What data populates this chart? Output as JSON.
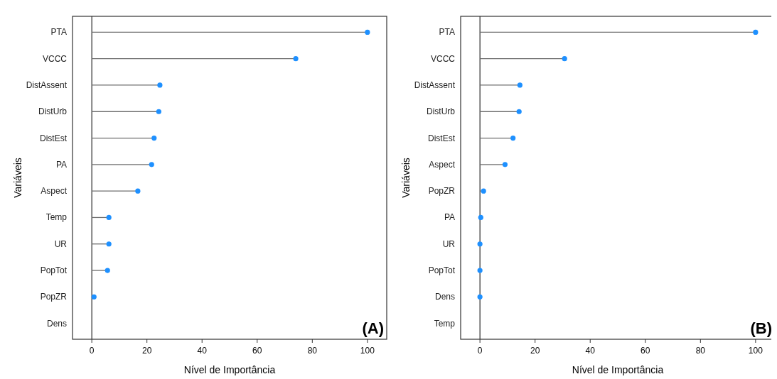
{
  "chart_data": [
    {
      "type": "lollipop",
      "orientation": "horizontal",
      "categories": [
        "PTA",
        "VCCC",
        "DistAssent",
        "DistUrb",
        "DistEst",
        "PA",
        "Aspect",
        "Temp",
        "UR",
        "PopTot",
        "PopZR",
        "Dens"
      ],
      "values": [
        100,
        74,
        24.7,
        24.3,
        22.6,
        21.7,
        16.7,
        6.2,
        6.2,
        5.7,
        0.8,
        null
      ],
      "color": "#1e90ff",
      "marker": "circle",
      "xlim": [
        -7,
        107
      ],
      "xticks": [
        0,
        20,
        40,
        60,
        80,
        100
      ],
      "xlabel": "Nível de Importância",
      "ylabel": "Variáveis",
      "ref_lines": [
        {
          "axis": "x",
          "value": 0,
          "color": "#000000"
        }
      ],
      "annotations": [
        "(A)"
      ]
    },
    {
      "type": "lollipop",
      "orientation": "horizontal",
      "categories": [
        "PTA",
        "VCCC",
        "DistAssent",
        "DistUrb",
        "DistEst",
        "Aspect",
        "PopZR",
        "PA",
        "UR",
        "PopTot",
        "Dens",
        "Temp"
      ],
      "values": [
        100,
        30.7,
        14.5,
        14.2,
        12,
        9.1,
        1.3,
        0.3,
        0,
        0,
        0,
        null
      ],
      "color": "#1e90ff",
      "marker": "circle",
      "xlim": [
        -7,
        107
      ],
      "xticks": [
        0,
        20,
        40,
        60,
        80,
        100
      ],
      "xlabel": "Nível de Importância",
      "ylabel": "Variáveis",
      "ref_lines": [
        {
          "axis": "x",
          "value": 0,
          "color": "#000000"
        }
      ],
      "annotations": [
        "(B)"
      ]
    }
  ]
}
